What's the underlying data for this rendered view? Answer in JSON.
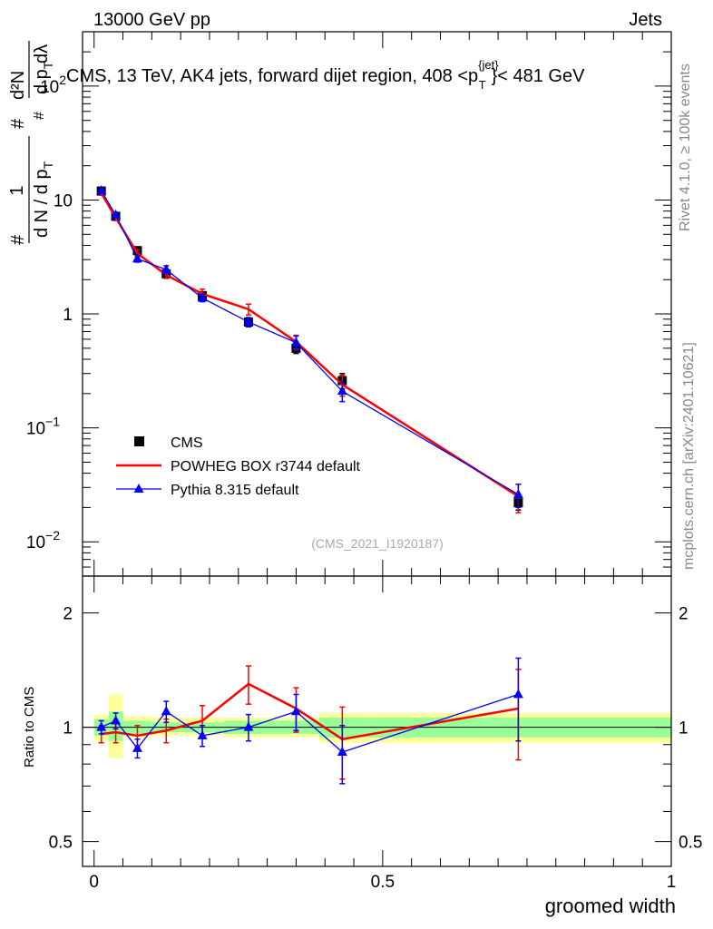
{
  "header": {
    "energy_label": "13000 GeV pp",
    "category_label": "Jets",
    "plot_title": "CMS, 13 TeV, AK4 jets, forward dijet region, 408 <p",
    "title_sup": "{jet}",
    "title_sub": "T",
    "title_tail": "}< 481 GeV",
    "side_rivet": "Rivet 4.1.0, ≥ 100k events",
    "side_mcplots": "mcplots.cern.ch [arXiv:2401.10621]",
    "analysis_id": "(CMS_2021_I1920187)"
  },
  "axis_labels": {
    "ylabel_frac_num": "1",
    "ylabel_frac_den": "d N / d p",
    "ylabel_frac_den_sub": "T",
    "ylabel_d2n": "d²N",
    "ylabel_dpt": "d p",
    "ylabel_dpt_sub": "T",
    "ylabel_dlambda": "dλ",
    "ylabel_hash": "#",
    "ratio_ylabel": "Ratio to CMS",
    "xlabel": "groomed width"
  },
  "chart_data": [
    {
      "type": "scatter",
      "panel": "main",
      "yscale": "log",
      "ylim": [
        0.005,
        300
      ],
      "xlim": [
        -0.02,
        1.0
      ],
      "yticks": [
        {
          "value": 0.01,
          "base": "10",
          "exp": "−2"
        },
        {
          "value": 0.1,
          "base": "10",
          "exp": "−1"
        },
        {
          "value": 1,
          "base": "1",
          "exp": ""
        },
        {
          "value": 10,
          "base": "10",
          "exp": ""
        },
        {
          "value": 100,
          "base": "10",
          "exp": "2"
        }
      ],
      "x": [
        0.0125,
        0.0375,
        0.075,
        0.125,
        0.1875,
        0.2675,
        0.35,
        0.43,
        0.735
      ],
      "series": [
        {
          "name": "CMS",
          "color": "#000000",
          "marker": "square",
          "values": [
            12.0,
            7.2,
            3.6,
            2.25,
            1.45,
            0.85,
            0.5,
            0.26,
            0.022
          ],
          "errors": [
            0.6,
            0.4,
            0.2,
            0.15,
            0.1,
            0.06,
            0.05,
            0.04,
            0.003
          ]
        },
        {
          "name": "POWHEG BOX r3744 default",
          "color": "#ff0000",
          "marker": "line",
          "values": [
            11.5,
            7.0,
            3.4,
            2.2,
            1.5,
            1.1,
            0.57,
            0.24,
            0.025
          ],
          "errors": [
            0.5,
            0.4,
            0.25,
            0.15,
            0.15,
            0.12,
            0.08,
            0.05,
            0.007
          ]
        },
        {
          "name": "Pythia 8.315 default",
          "color": "#0000ff",
          "marker": "triangle",
          "values": [
            12.1,
            7.4,
            3.05,
            2.45,
            1.38,
            0.85,
            0.56,
            0.21,
            0.026
          ],
          "errors": [
            0.4,
            0.3,
            0.2,
            0.2,
            0.1,
            0.08,
            0.08,
            0.04,
            0.006
          ]
        }
      ],
      "legend_position": "middle-left"
    },
    {
      "type": "line",
      "panel": "ratio",
      "ylabel": "Ratio to CMS",
      "ylim": [
        0.43,
        2.5
      ],
      "xlim": [
        -0.02,
        1.0
      ],
      "yticks": [
        0.5,
        1,
        2
      ],
      "ytick_labels": [
        "0.5",
        "1",
        "2"
      ],
      "xticks": [
        0,
        0.5,
        1
      ],
      "xtick_labels": [
        "0",
        "0.5",
        "1"
      ],
      "bins": [
        0,
        0.025,
        0.05,
        0.1,
        0.15,
        0.225,
        0.31,
        0.39,
        0.47,
        1.0
      ],
      "band_yellow": [
        [
          0.92,
          1.08
        ],
        [
          0.83,
          1.22
        ],
        [
          0.94,
          1.07
        ],
        [
          0.95,
          1.06
        ],
        [
          0.95,
          1.06
        ],
        [
          0.94,
          1.06
        ],
        [
          0.94,
          1.06
        ],
        [
          0.91,
          1.09
        ],
        [
          0.91,
          1.09
        ]
      ],
      "band_green": [
        [
          0.95,
          1.05
        ],
        [
          0.92,
          1.1
        ],
        [
          0.96,
          1.04
        ],
        [
          0.97,
          1.03
        ],
        [
          0.97,
          1.03
        ],
        [
          0.96,
          1.04
        ],
        [
          0.96,
          1.04
        ],
        [
          0.94,
          1.06
        ],
        [
          0.94,
          1.06
        ]
      ],
      "x": [
        0.0125,
        0.0375,
        0.075,
        0.125,
        0.1875,
        0.2675,
        0.35,
        0.43,
        0.735
      ],
      "series": [
        {
          "name": "POWHEG BOX r3744 default",
          "color": "#ff0000",
          "values": [
            0.96,
            0.97,
            0.95,
            0.98,
            1.04,
            1.3,
            1.12,
            0.93,
            1.12
          ],
          "errors": [
            0.05,
            0.06,
            0.06,
            0.07,
            0.1,
            0.15,
            0.15,
            0.2,
            0.3
          ]
        },
        {
          "name": "Pythia 8.315 default",
          "color": "#0000ff",
          "values": [
            1.0,
            1.04,
            0.88,
            1.1,
            0.95,
            1.0,
            1.1,
            0.86,
            1.22
          ],
          "errors": [
            0.04,
            0.05,
            0.05,
            0.07,
            0.06,
            0.08,
            0.12,
            0.15,
            0.3
          ]
        }
      ]
    }
  ]
}
